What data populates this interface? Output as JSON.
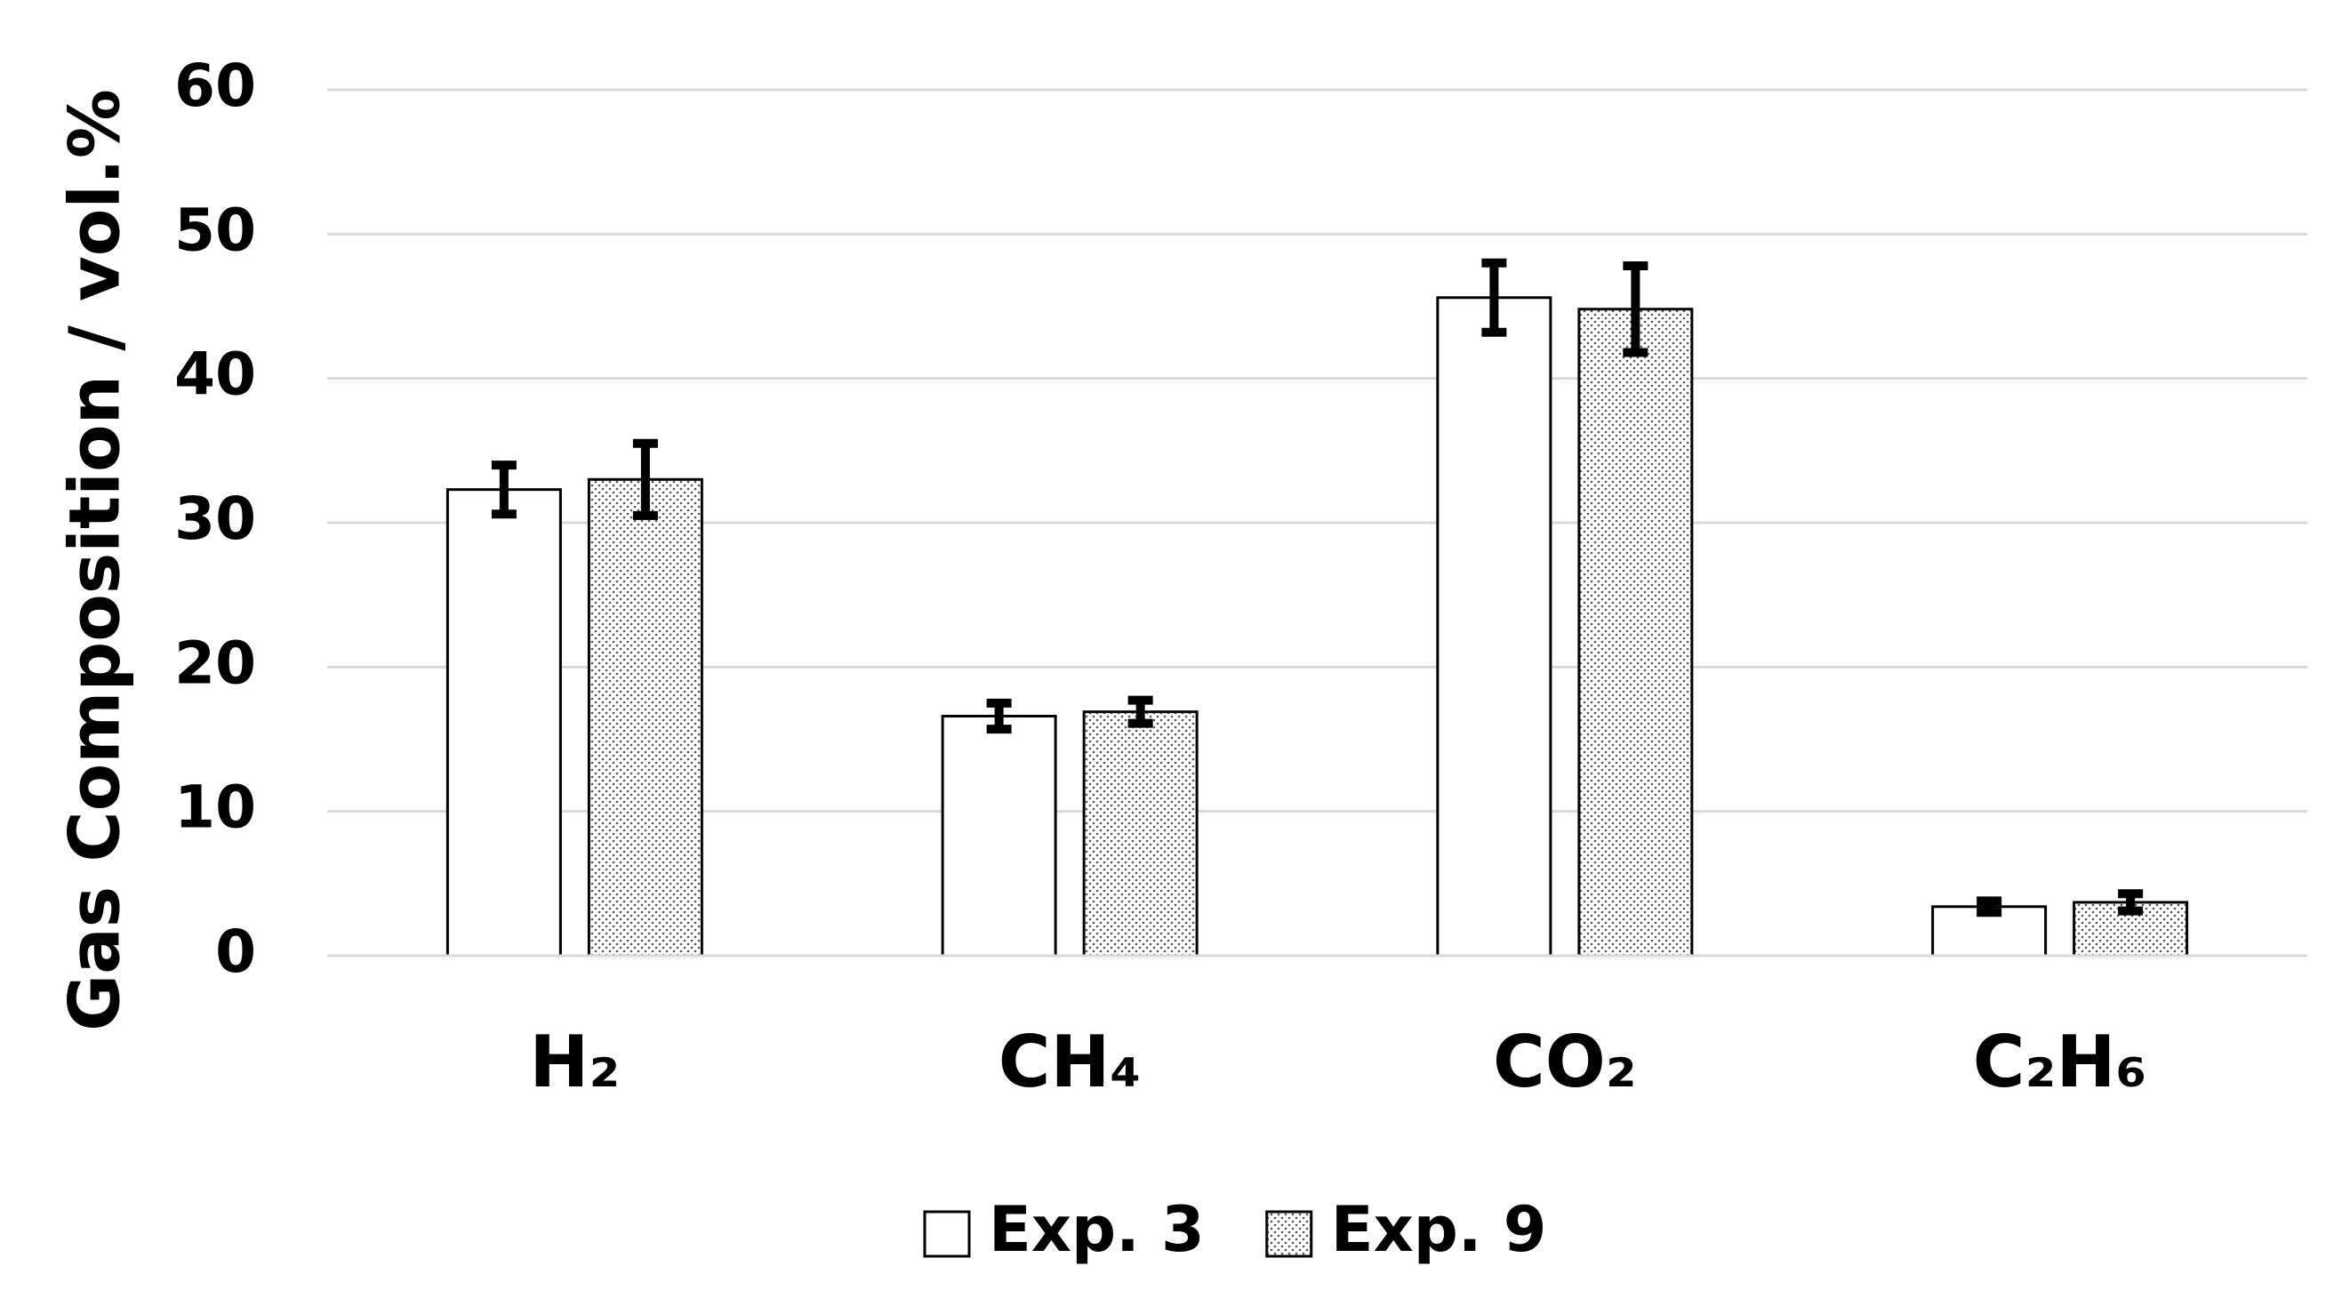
{
  "chart_data": {
    "type": "bar",
    "y_label": "Gas Composition / vol.%",
    "categories": [
      "H₂",
      "CH₄",
      "CO₂",
      "C₂H₆"
    ],
    "series": [
      {
        "name": "Exp. 3",
        "color": "#ffffff",
        "values": [
          32.3,
          16.6,
          45.6,
          3.4
        ],
        "errors": [
          1.7,
          0.9,
          2.4,
          0.4
        ]
      },
      {
        "name": "Exp. 9",
        "color": "#ffffff",
        "pattern": "dots",
        "values": [
          33.0,
          16.9,
          44.8,
          3.7
        ],
        "errors": [
          2.5,
          0.8,
          3.0,
          0.6
        ]
      }
    ],
    "ylim": [
      0,
      60
    ],
    "yticks": [
      0,
      10,
      20,
      30,
      40,
      50,
      60
    ],
    "grid": true,
    "legend": "bottom"
  }
}
